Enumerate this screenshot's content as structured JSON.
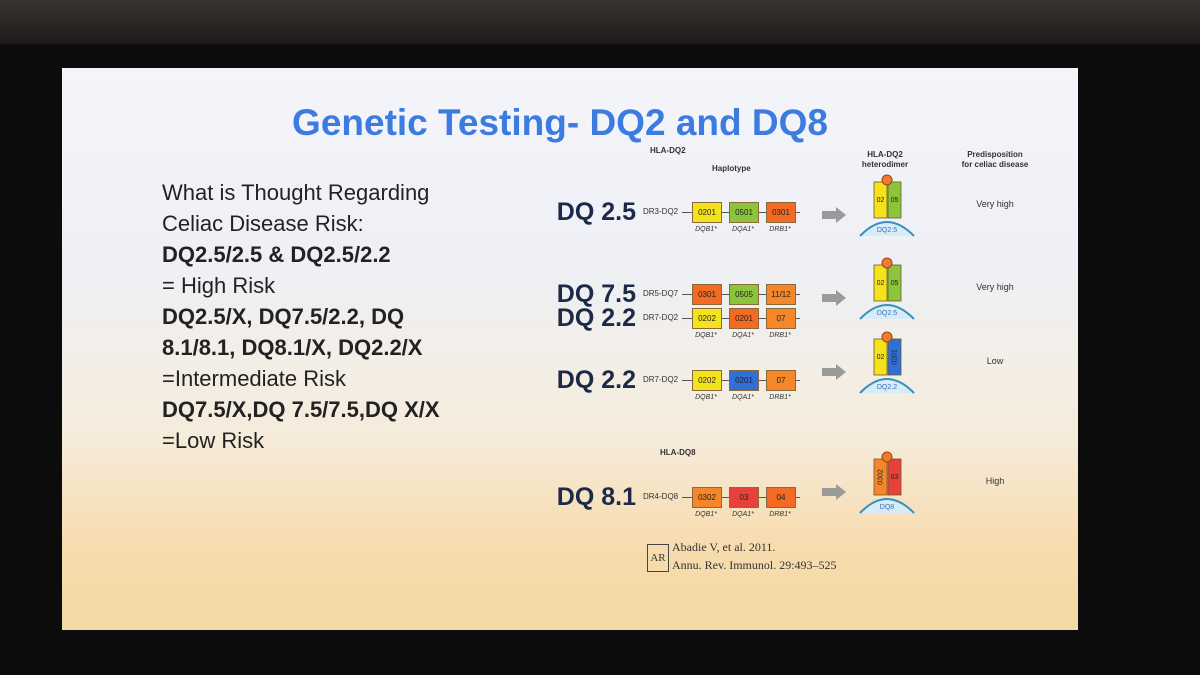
{
  "slide": {
    "title": "Genetic Testing- DQ2 and DQ8",
    "risk_text": [
      {
        "text": "What is Thought Regarding",
        "bold": false
      },
      {
        "text": "Celiac Disease Risk:",
        "bold": false
      },
      {
        "text": "DQ2.5/2.5 & DQ2.5/2.2",
        "bold": true
      },
      {
        "text": "= High Risk",
        "bold": false
      },
      {
        "text": "DQ2.5/X, DQ7.5/2.2, DQ",
        "bold": true
      },
      {
        "text": "8.1/8.1, DQ8.1/X, DQ2.2/X",
        "bold": true
      },
      {
        "text": "=Intermediate Risk",
        "bold": false
      },
      {
        "text": "DQ7.5/X,DQ 7.5/7.5,DQ X/X",
        "bold": true
      },
      {
        "text": "=Low Risk",
        "bold": false
      }
    ],
    "figure": {
      "dq2_header": "HLA-DQ2",
      "haplotype_header": "Haplotype",
      "dimer_header": [
        "HLA-DQ2",
        "heterodimer"
      ],
      "risk_header": [
        "Predisposition",
        "for celiac disease"
      ],
      "dq8_header": "HLA-DQ8",
      "rows": [
        {
          "labels": [
            "DQ 2.5"
          ],
          "haplotypes": [
            {
              "name": "DR3-DQ2",
              "genes": [
                {
                  "allele": "0201",
                  "color": "#f4e21c"
                },
                {
                  "allele": "0501",
                  "color": "#8cc43c"
                },
                {
                  "allele": "0301",
                  "color": "#f26a24"
                }
              ]
            }
          ],
          "gene_labels": [
            "DQB1*",
            "DQA1*",
            "DRB1*"
          ],
          "dimer": {
            "chains": [
              {
                "label": "02",
                "color": "#f4e21c"
              },
              {
                "label": "05",
                "color": "#8cc43c"
              }
            ],
            "label": "DQ2.5"
          },
          "risk": "Very high"
        },
        {
          "labels": [
            "DQ 7.5",
            "DQ 2.2"
          ],
          "haplotypes": [
            {
              "name": "DR5-DQ7",
              "genes": [
                {
                  "allele": "0301",
                  "color": "#f26a24"
                },
                {
                  "allele": "0505",
                  "color": "#8cc43c"
                },
                {
                  "allele": "11/12",
                  "color": "#f5872a"
                }
              ]
            },
            {
              "name": "DR7-DQ2",
              "genes": [
                {
                  "allele": "0202",
                  "color": "#f4e21c"
                },
                {
                  "allele": "0201",
                  "color": "#f26a24"
                },
                {
                  "allele": "07",
                  "color": "#f5872a"
                }
              ]
            }
          ],
          "gene_labels": [
            "DQB1*",
            "DQA1*",
            "DRB1*"
          ],
          "dimer": {
            "chains": [
              {
                "label": "02",
                "color": "#f4e21c"
              },
              {
                "label": "05",
                "color": "#8cc43c"
              }
            ],
            "label": "DQ2.5"
          },
          "risk": "Very high"
        },
        {
          "labels": [
            "DQ 2.2"
          ],
          "haplotypes": [
            {
              "name": "DR7-DQ2",
              "genes": [
                {
                  "allele": "0202",
                  "color": "#f4e21c"
                },
                {
                  "allele": "0201",
                  "color": "#2f6fd6"
                },
                {
                  "allele": "07",
                  "color": "#f5872a"
                }
              ]
            }
          ],
          "gene_labels": [
            "DQB1*",
            "DQA1*",
            "DRB1*"
          ],
          "dimer": {
            "chains": [
              {
                "label": "02",
                "color": "#f4e21c"
              },
              {
                "label": "0201",
                "color": "#2f6fd6"
              }
            ],
            "label": "DQ2.2"
          },
          "risk": "Low"
        },
        {
          "labels": [
            "DQ 8.1"
          ],
          "haplotypes": [
            {
              "name": "DR4-DQ8",
              "genes": [
                {
                  "allele": "0302",
                  "color": "#f5872a"
                },
                {
                  "allele": "03",
                  "color": "#e8413c"
                },
                {
                  "allele": "04",
                  "color": "#f26a24"
                }
              ]
            }
          ],
          "gene_labels": [
            "DQB1*",
            "DQA1*",
            "DRB1*"
          ],
          "dimer": {
            "chains": [
              {
                "label": "0302",
                "color": "#f5872a"
              },
              {
                "label": "03",
                "color": "#e8413c"
              }
            ],
            "label": "DQ8"
          },
          "risk": "High"
        }
      ]
    },
    "citation": {
      "logo": "AR",
      "lines": [
        "Abadie V, et al. 2011.",
        "Annu. Rev. Immunol. 29:493–525"
      ]
    }
  }
}
